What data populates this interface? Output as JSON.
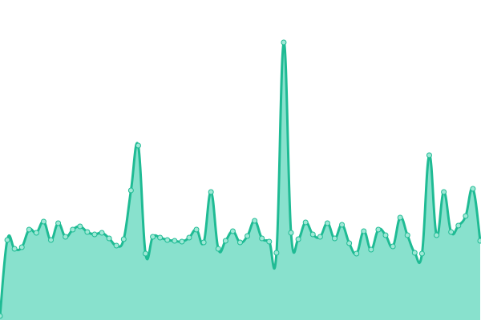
{
  "chart_data": {
    "type": "area",
    "values": [
      5,
      100,
      89,
      91,
      113,
      109,
      123,
      100,
      121,
      104,
      113,
      117,
      110,
      107,
      109,
      102,
      93,
      101,
      162,
      218,
      83,
      104,
      103,
      100,
      99,
      98,
      103,
      113,
      97,
      160,
      89,
      99,
      111,
      97,
      105,
      124,
      102,
      98,
      84,
      347,
      109,
      101,
      122,
      107,
      104,
      121,
      102,
      119,
      96,
      83,
      111,
      88,
      113,
      106,
      92,
      128,
      106,
      84,
      83,
      206,
      106,
      160,
      110,
      118,
      130,
      164,
      99
    ],
    "ylim": [
      0,
      400
    ],
    "line_color": "#1fbb94",
    "fill_color": "#88e1cd",
    "marker_fill": "#9fe8d6"
  }
}
